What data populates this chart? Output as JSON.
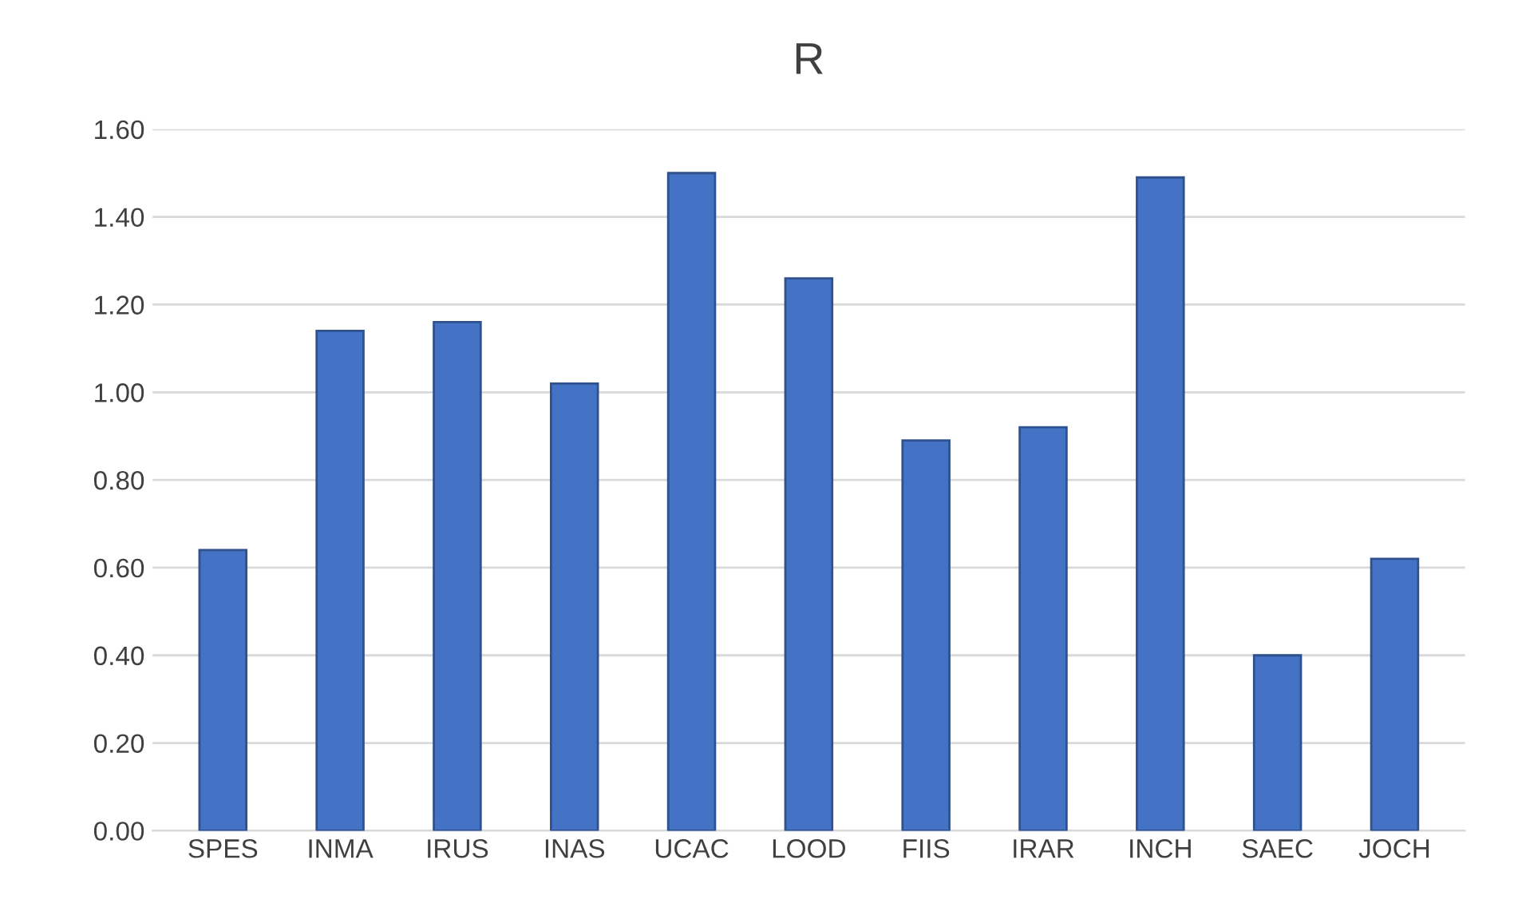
{
  "chart_data": {
    "type": "bar",
    "title": "R",
    "categories": [
      "SPES",
      "INMA",
      "IRUS",
      "INAS",
      "UCAC",
      "LOOD",
      "FIIS",
      "IRAR",
      "INCH",
      "SAEC",
      "JOCH"
    ],
    "values": [
      0.64,
      1.14,
      1.16,
      1.02,
      1.5,
      1.26,
      0.89,
      0.92,
      1.49,
      0.4,
      0.62
    ],
    "color": "#4472c4",
    "ylim": [
      0,
      1.6
    ],
    "yticks": [
      {
        "value": 0,
        "label": "0.00"
      },
      {
        "value": 0.2,
        "label": "0.20"
      },
      {
        "value": 0.4,
        "label": "0.40"
      },
      {
        "value": 0.6,
        "label": "0.60"
      },
      {
        "value": 0.8,
        "label": "0.80"
      },
      {
        "value": 1.0,
        "label": "1.00"
      },
      {
        "value": 1.2,
        "label": "1.20"
      },
      {
        "value": 1.4,
        "label": "1.40"
      },
      {
        "value": 1.6,
        "label": "1.60"
      }
    ],
    "grid": "y"
  }
}
